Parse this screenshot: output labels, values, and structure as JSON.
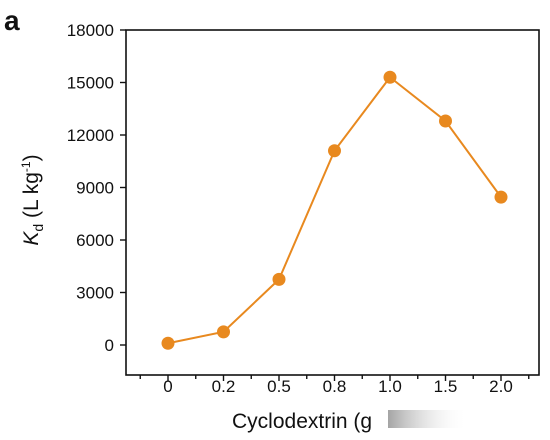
{
  "chart_data": {
    "type": "line",
    "panel_label": "a",
    "categories": [
      "0",
      "0.2",
      "0.5",
      "0.8",
      "1.0",
      "1.5",
      "2.0"
    ],
    "values": [
      100,
      750,
      3750,
      11100,
      15300,
      12800,
      8450
    ],
    "ylim": [
      0,
      18000
    ],
    "yticks": [
      "0",
      "3000",
      "6000",
      "9000",
      "12000",
      "15000",
      "18000"
    ],
    "ylabel": "Kd (L kg-1)",
    "ylabel_parts": {
      "main": "K",
      "sub": "d",
      "rest": " (L kg",
      "sup": "-1",
      "close": ")"
    },
    "xlabel": "Cyclodextrin (g",
    "grid": false,
    "legend": "none",
    "color": "#e8891f"
  }
}
